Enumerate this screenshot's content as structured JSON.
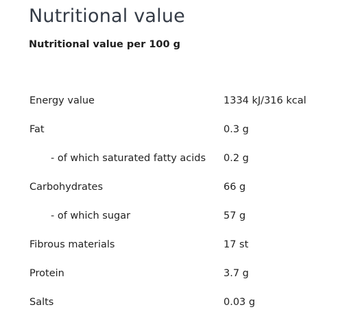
{
  "title": "Nutritional value",
  "subtitle": "Nutritional value per 100 g",
  "table": {
    "rows": [
      [
        "Energy value",
        "1334 kJ/316 kcal"
      ],
      [
        "Fat",
        "0.3 g"
      ],
      [
        "- of which saturated fatty acids",
        "0.2 g"
      ],
      [
        "Carbohydrates",
        "66 g"
      ],
      [
        "- of which sugar",
        "57 g"
      ],
      [
        "Fibrous materials",
        "17 st"
      ],
      [
        "Protein",
        "3.7 g"
      ],
      [
        "Salts",
        "0.03 g"
      ]
    ]
  }
}
